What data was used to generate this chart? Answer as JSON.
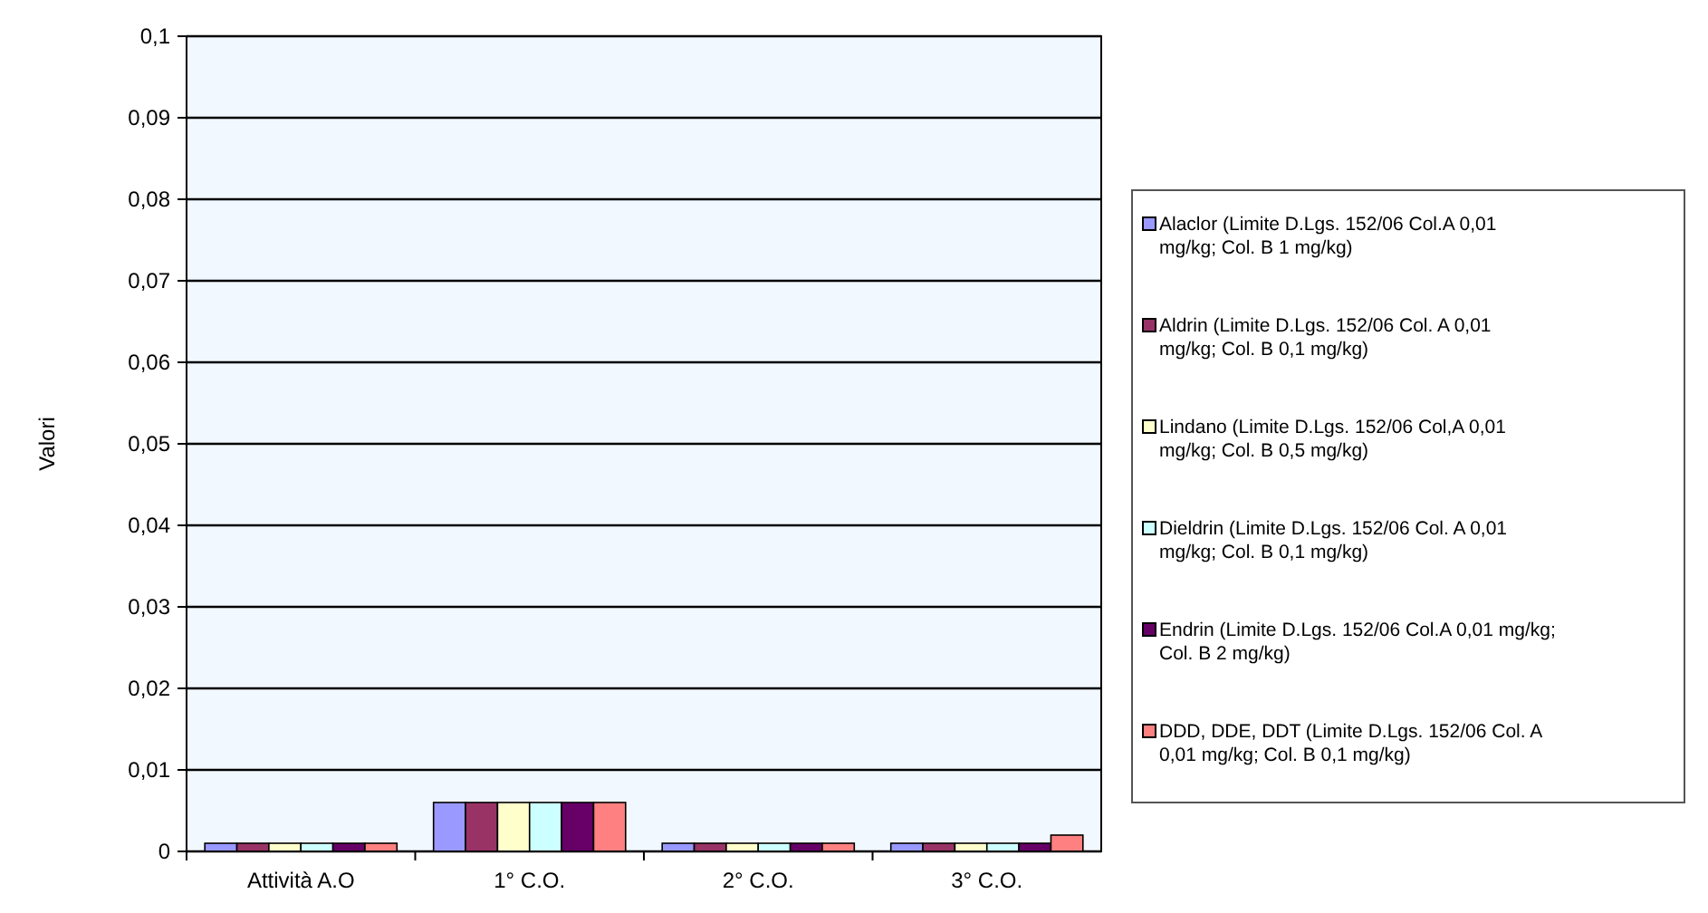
{
  "chart_data": {
    "type": "bar",
    "ylabel": "Valori",
    "categories": [
      "Attività A.O",
      "1°  C.O.",
      "2°  C.O.",
      "3°  C.O."
    ],
    "series": [
      {
        "name": "Alaclor (Limite D.Lgs. 152/06 Col.A 0,01 mg/kg; Col. B 1 mg/kg)",
        "color": "#9999ff",
        "values": [
          0.001,
          0.006,
          0.001,
          0.001
        ]
      },
      {
        "name": "Aldrin (Limite D.Lgs. 152/06 Col. A 0,01 mg/kg; Col. B 0,1 mg/kg)",
        "color": "#993366",
        "values": [
          0.001,
          0.006,
          0.001,
          0.001
        ]
      },
      {
        "name": "Lindano (Limite D.Lgs. 152/06 Col,A 0,01 mg/kg; Col. B 0,5 mg/kg)",
        "color": "#ffffcc",
        "values": [
          0.001,
          0.006,
          0.001,
          0.001
        ]
      },
      {
        "name": "Dieldrin (Limite D.Lgs. 152/06 Col. A 0,01 mg/kg; Col. B 0,1 mg/kg)",
        "color": "#ccffff",
        "values": [
          0.001,
          0.006,
          0.001,
          0.001
        ]
      },
      {
        "name": "Endrin (Limite D.Lgs. 152/06 Col.A 0,01 mg/kg; Col. B 2 mg/kg)",
        "color": "#660066",
        "values": [
          0.001,
          0.006,
          0.001,
          0.001
        ]
      },
      {
        "name": "DDD, DDE, DDT (Limite D.Lgs. 152/06 Col. A 0,01 mg/kg; Col. B 0,1 mg/kg)",
        "color": "#ff8080",
        "values": [
          0.001,
          0.006,
          0.001,
          0.002
        ]
      }
    ],
    "ylim": [
      0,
      0.1
    ],
    "yticks": [
      {
        "value": 0,
        "label": "0"
      },
      {
        "value": 0.01,
        "label": "0,01"
      },
      {
        "value": 0.02,
        "label": "0,02"
      },
      {
        "value": 0.03,
        "label": "0,03"
      },
      {
        "value": 0.04,
        "label": "0,04"
      },
      {
        "value": 0.05,
        "label": "0,05"
      },
      {
        "value": 0.06,
        "label": "0,06"
      },
      {
        "value": 0.07,
        "label": "0,07"
      },
      {
        "value": 0.08,
        "label": "0,08"
      },
      {
        "value": 0.09,
        "label": "0,09"
      },
      {
        "value": 0.1,
        "label": "0,1"
      }
    ],
    "grid": "y",
    "legend": "right"
  }
}
